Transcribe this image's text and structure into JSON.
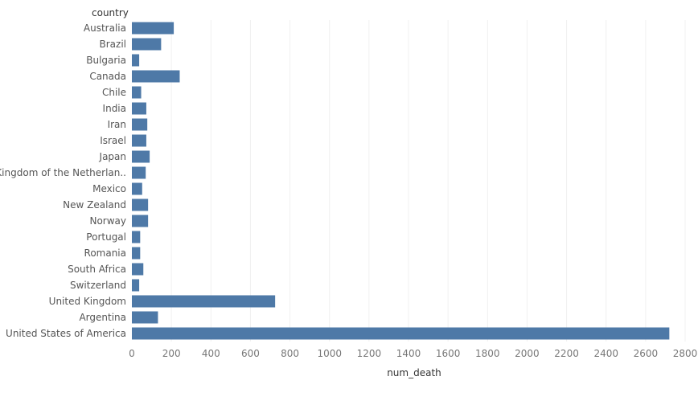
{
  "chart_data": {
    "type": "bar",
    "orientation": "horizontal",
    "category_header": "country",
    "xlabel": "num_death",
    "xlim": [
      0,
      2800
    ],
    "xticks": [
      0,
      200,
      400,
      600,
      800,
      1000,
      1200,
      1400,
      1600,
      1800,
      2000,
      2200,
      2400,
      2600,
      2800
    ],
    "grid": true,
    "bar_color": "#4e79a7",
    "categories": [
      "Australia",
      "Brazil",
      "Bulgaria",
      "Canada",
      "Chile",
      "India",
      "Iran",
      "Israel",
      "Japan",
      "Kingdom of the Netherlan..",
      "Mexico",
      "New Zealand",
      "Norway",
      "Portugal",
      "Romania",
      "South Africa",
      "Switzerland",
      "United Kingdom",
      "Argentina",
      "United States of America"
    ],
    "values": [
      212,
      148,
      37,
      242,
      47,
      73,
      78,
      73,
      90,
      70,
      52,
      82,
      82,
      42,
      42,
      58,
      37,
      725,
      132,
      2720
    ]
  }
}
